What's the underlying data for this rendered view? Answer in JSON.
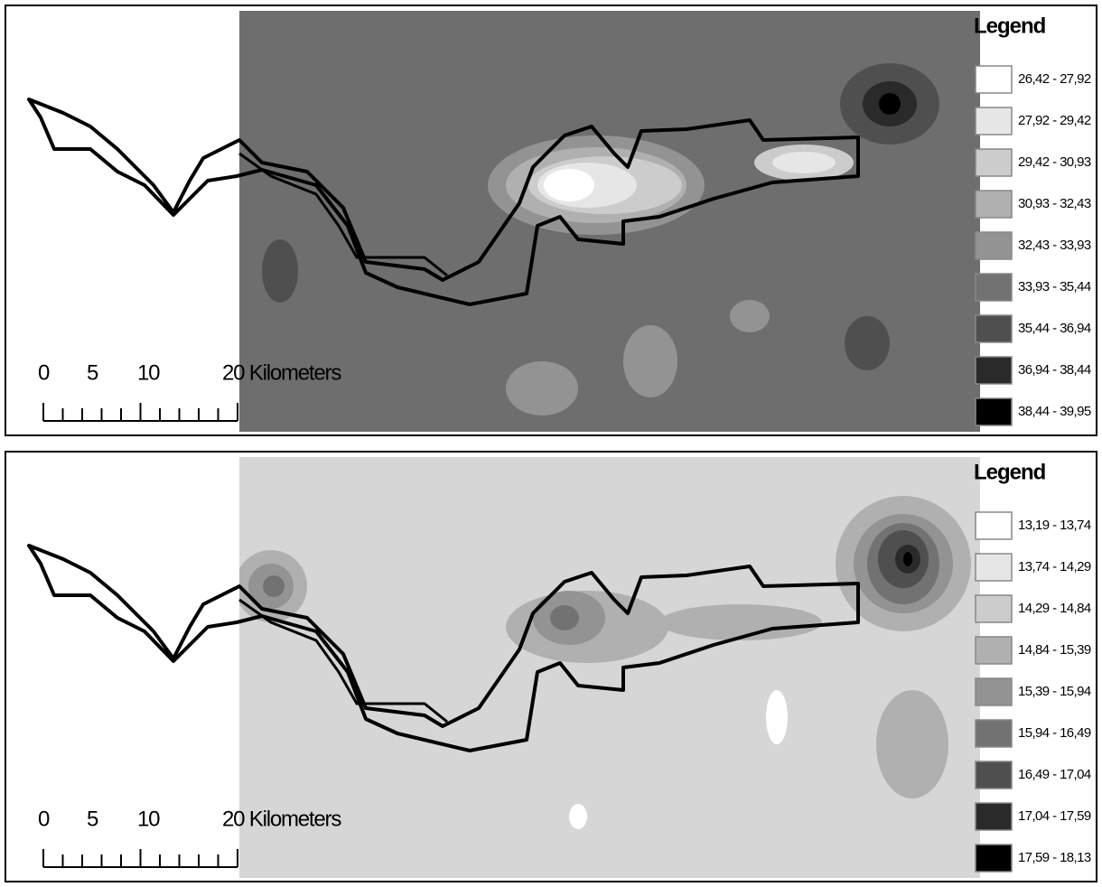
{
  "panels": [
    {
      "legend": {
        "title": "Legend",
        "items": [
          {
            "label": "26,42 - 27,92",
            "color": "#ffffff"
          },
          {
            "label": "27,92 - 29,42",
            "color": "#e6e6e6"
          },
          {
            "label": "29,42 - 30,93",
            "color": "#cccccc"
          },
          {
            "label": "30,93 - 32,43",
            "color": "#b0b0b0"
          },
          {
            "label": "32,43 - 33,93",
            "color": "#939393"
          },
          {
            "label": "33,93 - 35,44",
            "color": "#727272"
          },
          {
            "label": "35,44 - 36,94",
            "color": "#4f4f4f"
          },
          {
            "label": "36,94 - 38,44",
            "color": "#2a2a2a"
          },
          {
            "label": "38,44 - 39,95",
            "color": "#000000"
          }
        ]
      },
      "scale_bar": {
        "labels": [
          "0",
          "5",
          "10",
          "20 Kilometers"
        ]
      }
    },
    {
      "legend": {
        "title": "Legend",
        "items": [
          {
            "label": "13,19 - 13,74",
            "color": "#ffffff"
          },
          {
            "label": "13,74 - 14,29",
            "color": "#e6e6e6"
          },
          {
            "label": "14,29 - 14,84",
            "color": "#cccccc"
          },
          {
            "label": "14,84 - 15,39",
            "color": "#b0b0b0"
          },
          {
            "label": "15,39 - 15,94",
            "color": "#939393"
          },
          {
            "label": "15,94 - 16,49",
            "color": "#727272"
          },
          {
            "label": "16,49 - 17,04",
            "color": "#4f4f4f"
          },
          {
            "label": "17,04 - 17,59",
            "color": "#2a2a2a"
          },
          {
            "label": "17,59 - 18,13",
            "color": "#000000"
          }
        ]
      },
      "scale_bar": {
        "labels": [
          "0",
          "5",
          "10",
          "20 Kilometers"
        ]
      }
    }
  ]
}
